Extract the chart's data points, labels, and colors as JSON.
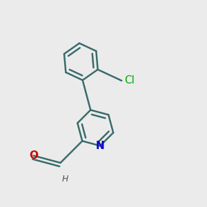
{
  "background_color": "#ebebeb",
  "bond_color": "#3a6b6b",
  "bond_width": 1.8,
  "N_color": "#0000cc",
  "O_color": "#cc0000",
  "Cl_color": "#00aa00",
  "H_color": "#555555",
  "figsize": [
    3.0,
    3.0
  ],
  "dpi": 100,
  "xlim": [
    -1.1,
    1.3
  ],
  "ylim": [
    -1.3,
    1.2
  ]
}
